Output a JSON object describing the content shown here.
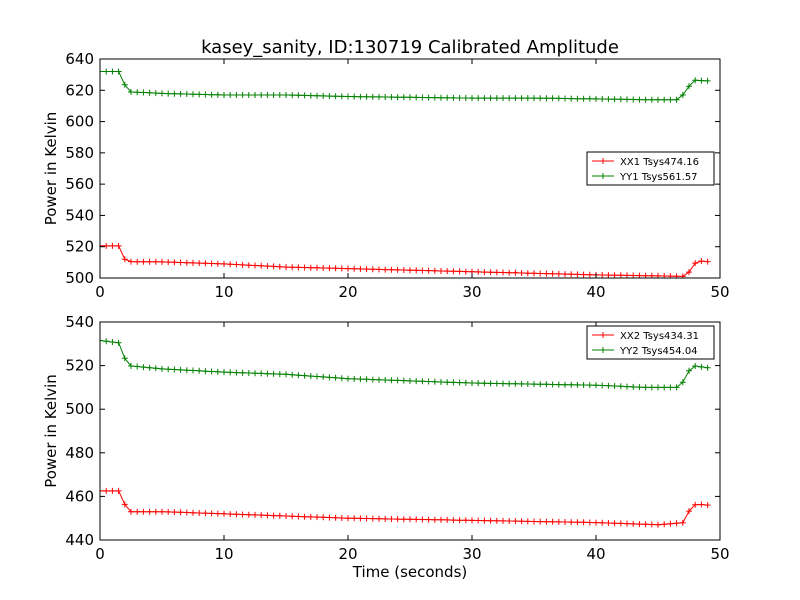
{
  "chart_data": {
    "type": "line",
    "title": "kasey_sanity, ID:130719 Calibrated Amplitude",
    "xlabel": "Time (seconds)",
    "xlim": [
      0,
      50
    ],
    "xticks": [
      0,
      10,
      20,
      30,
      40,
      50
    ],
    "marker": "+",
    "panels": [
      {
        "ylabel": "Power in Kelvin",
        "ylim": [
          500,
          640
        ],
        "yticks": [
          500,
          520,
          540,
          560,
          580,
          600,
          620,
          640
        ],
        "legend_position": "center-right",
        "series": [
          {
            "name": "XX1 Tsys474.16",
            "color": "#ff0000",
            "points": [
              [
                0,
                520.5
              ],
              [
                1.5,
                520.5
              ],
              [
                2,
                512
              ],
              [
                2.3,
                510.5
              ],
              [
                5,
                510.3
              ],
              [
                10,
                509.0
              ],
              [
                15,
                507.0
              ],
              [
                20,
                506.0
              ],
              [
                25,
                505.0
              ],
              [
                30,
                504.0
              ],
              [
                35,
                503.0
              ],
              [
                40,
                502.0
              ],
              [
                44,
                501.5
              ],
              [
                47.3,
                501.0
              ],
              [
                47.8,
                508
              ],
              [
                48.2,
                511
              ],
              [
                49,
                510.5
              ]
            ]
          },
          {
            "name": "YY1 Tsys561.57",
            "color": "#008000",
            "points": [
              [
                0,
                632
              ],
              [
                1.5,
                632
              ],
              [
                1.9,
                625
              ],
              [
                2.3,
                619
              ],
              [
                5,
                618
              ],
              [
                10,
                617
              ],
              [
                15,
                617
              ],
              [
                20,
                616
              ],
              [
                25,
                615.5
              ],
              [
                30,
                615
              ],
              [
                35,
                615
              ],
              [
                40,
                614.5
              ],
              [
                44,
                614
              ],
              [
                46.7,
                614
              ],
              [
                47.3,
                620
              ],
              [
                47.8,
                626.5
              ],
              [
                49,
                626
              ]
            ]
          }
        ]
      },
      {
        "ylabel": "Power in Kelvin",
        "ylim": [
          440,
          540
        ],
        "yticks": [
          440,
          460,
          480,
          500,
          520,
          540
        ],
        "legend_position": "top-right",
        "series": [
          {
            "name": "XX2 Tsys434.31",
            "color": "#ff0000",
            "points": [
              [
                0,
                462.5
              ],
              [
                1.5,
                462.5
              ],
              [
                1.9,
                458
              ],
              [
                2.2,
                453
              ],
              [
                5,
                453
              ],
              [
                10,
                452
              ],
              [
                15,
                451
              ],
              [
                20,
                450
              ],
              [
                25,
                449.5
              ],
              [
                30,
                449
              ],
              [
                35,
                448.5
              ],
              [
                40,
                448
              ],
              [
                45,
                447
              ],
              [
                47.2,
                448
              ],
              [
                47.6,
                455
              ],
              [
                48.1,
                456.5
              ],
              [
                49,
                456
              ]
            ]
          },
          {
            "name": "YY2 Tsys454.04",
            "color": "#008000",
            "points": [
              [
                0,
                531.5
              ],
              [
                1.5,
                530.5
              ],
              [
                1.9,
                525
              ],
              [
                2.2,
                520
              ],
              [
                5,
                518.5
              ],
              [
                10,
                517
              ],
              [
                15,
                516
              ],
              [
                20,
                514
              ],
              [
                25,
                513
              ],
              [
                30,
                512
              ],
              [
                35,
                511.5
              ],
              [
                40,
                511
              ],
              [
                44,
                510
              ],
              [
                46.8,
                510
              ],
              [
                47.3,
                516
              ],
              [
                47.8,
                520
              ],
              [
                49,
                519
              ]
            ]
          }
        ]
      }
    ]
  }
}
